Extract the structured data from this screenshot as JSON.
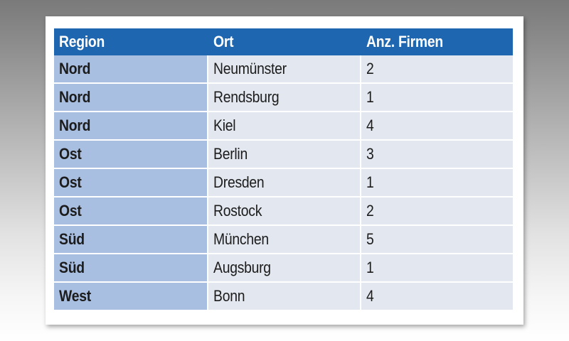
{
  "table": {
    "headers": [
      "Region",
      "Ort",
      "Anz. Firmen"
    ],
    "rows": [
      [
        "Nord",
        "Neumünster",
        "2"
      ],
      [
        "Nord",
        "Rendsburg",
        "1"
      ],
      [
        "Nord",
        "Kiel",
        "4"
      ],
      [
        "Ost",
        "Berlin",
        "3"
      ],
      [
        "Ost",
        "Dresden",
        "1"
      ],
      [
        "Ost",
        "Rostock",
        "2"
      ],
      [
        "Süd",
        "München",
        "5"
      ],
      [
        "Süd",
        "Augsburg",
        "1"
      ],
      [
        "West",
        "Bonn",
        "4"
      ]
    ]
  },
  "colors": {
    "header_bg": "#1f66b1",
    "region_col_bg": "#a8bfe1",
    "cell_bg": "#e3e7ef"
  }
}
